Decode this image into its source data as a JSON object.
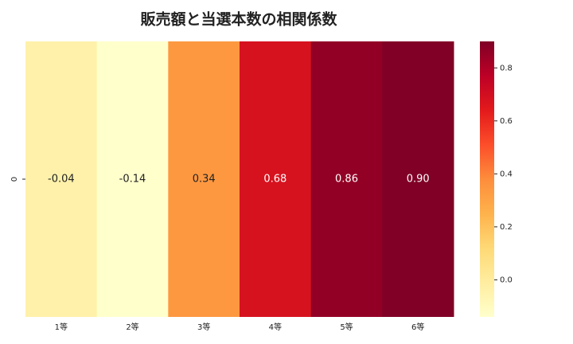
{
  "chart_data": {
    "type": "heatmap",
    "title": "販売額と当選本数の相関係数",
    "categories": [
      "1等",
      "2等",
      "3等",
      "4等",
      "5等",
      "6等"
    ],
    "rows": [
      "0"
    ],
    "values": [
      -0.04,
      -0.14,
      0.34,
      0.68,
      0.86,
      0.9
    ],
    "value_labels": [
      "-0.04",
      "-0.14",
      "0.34",
      "0.68",
      "0.86",
      "0.90"
    ],
    "colormap": [
      "#ffffcc",
      "#ffeda0",
      "#fed976",
      "#feb24c",
      "#fd8d3c",
      "#fc4e2a",
      "#e31a1c",
      "#bd0026",
      "#800026"
    ],
    "clim": [
      -0.14,
      0.9
    ],
    "cticks": [
      {
        "value": 0,
        "label": "0.0"
      },
      0.2,
      0.4,
      0.6,
      0.8
    ]
  }
}
